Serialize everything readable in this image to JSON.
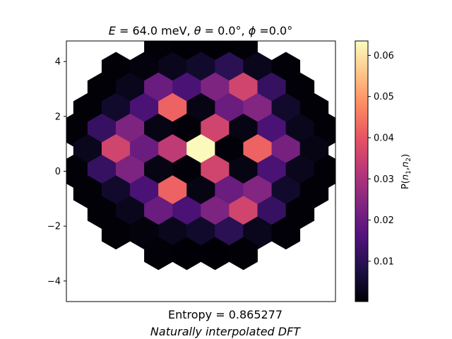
{
  "chart_data": {
    "type": "heatmap",
    "title": {
      "energy_prefix": "E",
      "energy_value": " = 64.0 meV, ",
      "theta_symbol": "θ",
      "theta_value": " = 0.0°, ",
      "phi_symbol": "ϕ",
      "phi_value": " =0.0°"
    },
    "ylim": [
      -4.75,
      4.75
    ],
    "xlim": [
      -4.75,
      4.75
    ],
    "y_ticks": [
      {
        "value": 4,
        "label": "4"
      },
      {
        "value": 2,
        "label": "2"
      },
      {
        "value": 0,
        "label": "0"
      },
      {
        "value": -2,
        "label": "−2"
      },
      {
        "value": -4,
        "label": "−4"
      }
    ],
    "grid": false,
    "colormap": "magma",
    "colorbar": {
      "label_prefix": "P(",
      "label_n1": "n",
      "label_sub1": "1",
      "label_sep": ",",
      "label_n2": "n",
      "label_sub2": "2",
      "label_suffix": ")",
      "range": [
        0.0002,
        0.0635
      ],
      "ticks": [
        {
          "value": 0.01,
          "label": "0.01"
        },
        {
          "value": 0.02,
          "label": "0.02"
        },
        {
          "value": 0.03,
          "label": "0.03"
        },
        {
          "value": 0.04,
          "label": "0.04"
        },
        {
          "value": 0.05,
          "label": "0.05"
        },
        {
          "value": 0.06,
          "label": "0.06"
        }
      ]
    },
    "hex_cells": [
      {
        "x": -1.5,
        "y": 4.5,
        "value": 0.0005
      },
      {
        "x": -0.5,
        "y": 4.5,
        "value": 0.0004
      },
      {
        "x": 0.5,
        "y": 4.5,
        "value": 0.0004
      },
      {
        "x": 1.5,
        "y": 4.5,
        "value": 0.0005
      },
      {
        "x": -3.0,
        "y": 3.75,
        "value": 0.0006
      },
      {
        "x": -2.0,
        "y": 3.75,
        "value": 0.0012
      },
      {
        "x": -1.0,
        "y": 3.75,
        "value": 0.003
      },
      {
        "x": 0.0,
        "y": 3.75,
        "value": 0.005
      },
      {
        "x": 1.0,
        "y": 3.75,
        "value": 0.01
      },
      {
        "x": 2.0,
        "y": 3.75,
        "value": 0.003
      },
      {
        "x": 3.0,
        "y": 3.75,
        "value": 0.0006
      },
      {
        "x": -3.5,
        "y": 3.0,
        "value": 0.0006
      },
      {
        "x": -2.5,
        "y": 3.0,
        "value": 0.003
      },
      {
        "x": -1.5,
        "y": 3.0,
        "value": 0.02
      },
      {
        "x": -0.5,
        "y": 3.0,
        "value": 0.015
      },
      {
        "x": 0.5,
        "y": 3.0,
        "value": 0.023
      },
      {
        "x": 1.5,
        "y": 3.0,
        "value": 0.036
      },
      {
        "x": 2.5,
        "y": 3.0,
        "value": 0.012
      },
      {
        "x": 3.5,
        "y": 3.0,
        "value": 0.0006
      },
      {
        "x": -4.0,
        "y": 2.25,
        "value": 0.0005
      },
      {
        "x": -3.0,
        "y": 2.25,
        "value": 0.005
      },
      {
        "x": -2.0,
        "y": 2.25,
        "value": 0.015
      },
      {
        "x": -1.0,
        "y": 2.25,
        "value": 0.042
      },
      {
        "x": 0.0,
        "y": 2.25,
        "value": 0.002
      },
      {
        "x": 1.0,
        "y": 2.25,
        "value": 0.02
      },
      {
        "x": 2.0,
        "y": 2.25,
        "value": 0.024
      },
      {
        "x": 3.0,
        "y": 2.25,
        "value": 0.005
      },
      {
        "x": 4.0,
        "y": 2.25,
        "value": 0.0005
      },
      {
        "x": -4.5,
        "y": 1.5,
        "value": 0.0005
      },
      {
        "x": -3.5,
        "y": 1.5,
        "value": 0.012
      },
      {
        "x": -2.5,
        "y": 1.5,
        "value": 0.023
      },
      {
        "x": -1.5,
        "y": 1.5,
        "value": 0.002
      },
      {
        "x": -0.5,
        "y": 1.5,
        "value": 0.0008
      },
      {
        "x": 0.5,
        "y": 1.5,
        "value": 0.036
      },
      {
        "x": 1.5,
        "y": 1.5,
        "value": 0.002
      },
      {
        "x": 2.5,
        "y": 1.5,
        "value": 0.015
      },
      {
        "x": 3.5,
        "y": 1.5,
        "value": 0.003
      },
      {
        "x": 4.5,
        "y": 1.5,
        "value": 0.0005
      },
      {
        "x": -4.0,
        "y": 0.75,
        "value": 0.003
      },
      {
        "x": -3.0,
        "y": 0.75,
        "value": 0.036
      },
      {
        "x": -2.0,
        "y": 0.75,
        "value": 0.02
      },
      {
        "x": -1.0,
        "y": 0.75,
        "value": 0.033
      },
      {
        "x": 0.0,
        "y": 0.75,
        "value": 0.063
      },
      {
        "x": 1.0,
        "y": 0.75,
        "value": 0.0008
      },
      {
        "x": 2.0,
        "y": 0.75,
        "value": 0.042
      },
      {
        "x": 3.0,
        "y": 0.75,
        "value": 0.022
      },
      {
        "x": 4.0,
        "y": 0.75,
        "value": 0.002
      },
      {
        "x": -4.5,
        "y": 0.0,
        "value": 0.0005
      },
      {
        "x": -3.5,
        "y": 0.0,
        "value": 0.012
      },
      {
        "x": -2.5,
        "y": 0.0,
        "value": 0.023
      },
      {
        "x": -1.5,
        "y": 0.0,
        "value": 0.002
      },
      {
        "x": -0.5,
        "y": 0.0,
        "value": 0.0008
      },
      {
        "x": 0.5,
        "y": 0.0,
        "value": 0.036
      },
      {
        "x": 1.5,
        "y": 0.0,
        "value": 0.002
      },
      {
        "x": 2.5,
        "y": 0.0,
        "value": 0.015
      },
      {
        "x": 3.5,
        "y": 0.0,
        "value": 0.003
      },
      {
        "x": 4.5,
        "y": 0.0,
        "value": 0.0005
      },
      {
        "x": -4.0,
        "y": -0.75,
        "value": 0.0005
      },
      {
        "x": -3.0,
        "y": -0.75,
        "value": 0.005
      },
      {
        "x": -2.0,
        "y": -0.75,
        "value": 0.015
      },
      {
        "x": -1.0,
        "y": -0.75,
        "value": 0.042
      },
      {
        "x": 0.0,
        "y": -0.75,
        "value": 0.002
      },
      {
        "x": 1.0,
        "y": -0.75,
        "value": 0.02
      },
      {
        "x": 2.0,
        "y": -0.75,
        "value": 0.024
      },
      {
        "x": 3.0,
        "y": -0.75,
        "value": 0.005
      },
      {
        "x": 4.0,
        "y": -0.75,
        "value": 0.0005
      },
      {
        "x": -3.5,
        "y": -1.5,
        "value": 0.0006
      },
      {
        "x": -2.5,
        "y": -1.5,
        "value": 0.003
      },
      {
        "x": -1.5,
        "y": -1.5,
        "value": 0.02
      },
      {
        "x": -0.5,
        "y": -1.5,
        "value": 0.015
      },
      {
        "x": 0.5,
        "y": -1.5,
        "value": 0.023
      },
      {
        "x": 1.5,
        "y": -1.5,
        "value": 0.036
      },
      {
        "x": 2.5,
        "y": -1.5,
        "value": 0.012
      },
      {
        "x": 3.5,
        "y": -1.5,
        "value": 0.0006
      },
      {
        "x": -3.0,
        "y": -2.25,
        "value": 0.0006
      },
      {
        "x": -2.0,
        "y": -2.25,
        "value": 0.0012
      },
      {
        "x": -1.0,
        "y": -2.25,
        "value": 0.003
      },
      {
        "x": 0.0,
        "y": -2.25,
        "value": 0.005
      },
      {
        "x": 1.0,
        "y": -2.25,
        "value": 0.01
      },
      {
        "x": 2.0,
        "y": -2.25,
        "value": 0.003
      },
      {
        "x": 3.0,
        "y": -2.25,
        "value": 0.0006
      },
      {
        "x": -1.5,
        "y": -3.0,
        "value": 0.0005
      },
      {
        "x": -0.5,
        "y": -3.0,
        "value": 0.0004
      },
      {
        "x": 0.5,
        "y": -3.0,
        "value": 0.0004
      },
      {
        "x": 1.5,
        "y": -3.0,
        "value": 0.0005
      }
    ],
    "annotations": {
      "entropy": "Entropy = 0.865277",
      "method": "Naturally interpolated DFT"
    }
  }
}
